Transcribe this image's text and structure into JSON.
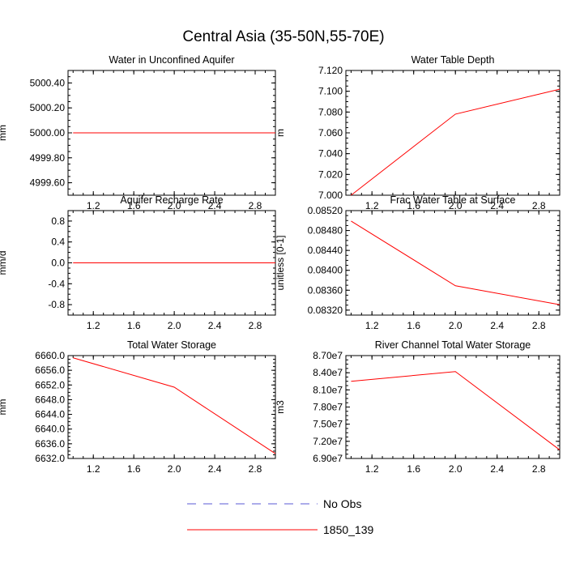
{
  "title": "Central Asia (35-50N,55-70E)",
  "series_colors": {
    "no_obs": "#5a5ad6",
    "run": "#ff0000"
  },
  "legend": [
    {
      "label": "No Obs",
      "style": "dashed",
      "color": "#5a5ad6"
    },
    {
      "label": "1850_139",
      "style": "solid",
      "color": "#ff0000"
    }
  ],
  "chart_data": [
    {
      "type": "line",
      "title": "Water in Unconfined Aquifer",
      "ylabel": "mm",
      "xlim": [
        0.95,
        3.0
      ],
      "ylim": [
        4999.5,
        5000.5
      ],
      "xticks": [
        1.2,
        1.6,
        2.0,
        2.4,
        2.8
      ],
      "xtick_labels": [
        "1.2",
        "1.6",
        "2.0",
        "2.4",
        "2.8"
      ],
      "yticks": [
        4999.6,
        4999.8,
        5000.0,
        5000.2,
        5000.4
      ],
      "ytick_labels": [
        "4999.60",
        "4999.80",
        "5000.00",
        "5000.20",
        "5000.40"
      ],
      "series": [
        {
          "name": "1850_139",
          "x": [
            1.0,
            2.0,
            3.0
          ],
          "y": [
            5000.0,
            5000.0,
            5000.0
          ]
        }
      ]
    },
    {
      "type": "line",
      "title": "Water Table Depth",
      "ylabel": "m",
      "xlim": [
        0.95,
        3.0
      ],
      "ylim": [
        7.0,
        7.12
      ],
      "xticks": [
        1.2,
        1.6,
        2.0,
        2.4,
        2.8
      ],
      "xtick_labels": [
        "1.2",
        "1.6",
        "2.0",
        "2.4",
        "2.8"
      ],
      "yticks": [
        7.0,
        7.02,
        7.04,
        7.06,
        7.08,
        7.1,
        7.12
      ],
      "ytick_labels": [
        "7.000",
        "7.020",
        "7.040",
        "7.060",
        "7.080",
        "7.100",
        "7.120"
      ],
      "series": [
        {
          "name": "1850_139",
          "x": [
            1.0,
            2.0,
            3.0
          ],
          "y": [
            7.0,
            7.078,
            7.102
          ]
        }
      ]
    },
    {
      "type": "line",
      "title": "Aquifer Recharge Rate",
      "ylabel": "mm/d",
      "xlim": [
        0.95,
        3.0
      ],
      "ylim": [
        -1.0,
        1.0
      ],
      "xticks": [
        1.2,
        1.6,
        2.0,
        2.4,
        2.8
      ],
      "xtick_labels": [
        "1.2",
        "1.6",
        "2.0",
        "2.4",
        "2.8"
      ],
      "yticks": [
        -0.8,
        -0.4,
        0.0,
        0.4,
        0.8
      ],
      "ytick_labels": [
        "-0.8",
        "-0.4",
        "0.0",
        "0.4",
        "0.8"
      ],
      "series": [
        {
          "name": "1850_139",
          "x": [
            1.0,
            2.0,
            3.0
          ],
          "y": [
            0.0,
            0.0,
            0.0
          ]
        }
      ]
    },
    {
      "type": "line",
      "title": "Frac Water Table at Surface",
      "ylabel": "unitless [0-1]",
      "xlim": [
        0.95,
        3.0
      ],
      "ylim": [
        0.0831,
        0.0852
      ],
      "xticks": [
        1.2,
        1.6,
        2.0,
        2.4,
        2.8
      ],
      "xtick_labels": [
        "1.2",
        "1.6",
        "2.0",
        "2.4",
        "2.8"
      ],
      "yticks": [
        0.0832,
        0.0836,
        0.084,
        0.0844,
        0.0848,
        0.0852
      ],
      "ytick_labels": [
        "0.08320",
        "0.08360",
        "0.08400",
        "0.08440",
        "0.08480",
        "0.08520"
      ],
      "series": [
        {
          "name": "1850_139",
          "x": [
            1.0,
            2.0,
            3.0
          ],
          "y": [
            0.08499,
            0.08369,
            0.08331
          ]
        }
      ]
    },
    {
      "type": "line",
      "title": "Total Water Storage",
      "ylabel": "mm",
      "xlim": [
        0.95,
        3.0
      ],
      "ylim": [
        6632.0,
        6660.0
      ],
      "xticks": [
        1.2,
        1.6,
        2.0,
        2.4,
        2.8
      ],
      "xtick_labels": [
        "1.2",
        "1.6",
        "2.0",
        "2.4",
        "2.8"
      ],
      "yticks": [
        6632,
        6636,
        6640,
        6644,
        6648,
        6652,
        6656,
        6660
      ],
      "ytick_labels": [
        "6632.0",
        "6636.0",
        "6640.0",
        "6644.0",
        "6648.0",
        "6652.0",
        "6656.0",
        "6660.0"
      ],
      "series": [
        {
          "name": "1850_139",
          "x": [
            1.0,
            2.0,
            3.0
          ],
          "y": [
            6659.4,
            6651.4,
            6633.3
          ]
        }
      ]
    },
    {
      "type": "line",
      "title": "River Channel Total Water Storage",
      "ylabel": "m3",
      "xlim": [
        0.95,
        3.0
      ],
      "ylim": [
        69000000,
        87000000
      ],
      "xticks": [
        1.2,
        1.6,
        2.0,
        2.4,
        2.8
      ],
      "xtick_labels": [
        "1.2",
        "1.6",
        "2.0",
        "2.4",
        "2.8"
      ],
      "yticks": [
        69000000,
        72000000,
        75000000,
        78000000,
        81000000,
        84000000,
        87000000
      ],
      "ytick_labels": [
        "6.90e7",
        "7.20e7",
        "7.50e7",
        "7.80e7",
        "8.10e7",
        "8.40e7",
        "8.70e7"
      ],
      "series": [
        {
          "name": "1850_139",
          "x": [
            1.0,
            2.0,
            3.0
          ],
          "y": [
            82500000,
            84200000,
            70500000
          ]
        }
      ]
    }
  ]
}
